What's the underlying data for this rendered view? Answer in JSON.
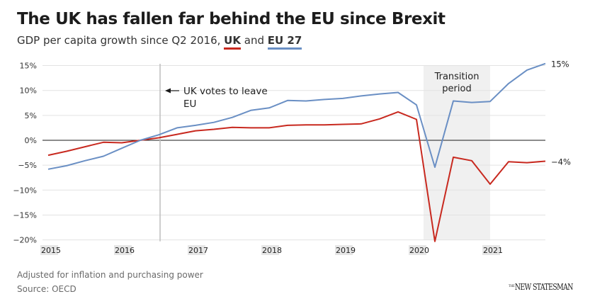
{
  "header": {
    "title": "The UK has fallen far behind the EU since Brexit",
    "subtitle_prefix": "GDP per capita growth since Q2 2016, ",
    "subtitle_uk": "UK",
    "subtitle_and": " and ",
    "subtitle_eu": "EU 27"
  },
  "footer": {
    "note": "Adjusted for inflation and purchasing power",
    "source": "Source: OECD",
    "logo_the": "THE",
    "logo_name": "NEW STATESMAN"
  },
  "colors": {
    "uk": "#c8291f",
    "eu": "#6a8fc4",
    "grid": "#e2e2e2",
    "zero_line": "#1a1a1a",
    "annotation_line": "#bdbdbd",
    "transition_band": "#f0f0f0"
  },
  "chart_data": {
    "type": "line",
    "title": "The UK has fallen far behind the EU since Brexit",
    "subtitle": "GDP per capita growth since Q2 2016, UK and EU 27",
    "xlabel": "",
    "ylabel": "",
    "ylim": [
      -20,
      15
    ],
    "yticks": [
      15,
      10,
      5,
      0,
      -5,
      -10,
      -15,
      -20
    ],
    "ytick_labels": [
      "15%",
      "10%",
      "5%",
      "0%",
      "−5%",
      "−10%",
      "−15%",
      "−20%"
    ],
    "x": [
      "2015 Q1",
      "2015 Q2",
      "2015 Q3",
      "2015 Q4",
      "2016 Q1",
      "2016 Q2",
      "2016 Q3",
      "2016 Q4",
      "2017 Q1",
      "2017 Q2",
      "2017 Q3",
      "2017 Q4",
      "2018 Q1",
      "2018 Q2",
      "2018 Q3",
      "2018 Q4",
      "2019 Q1",
      "2019 Q2",
      "2019 Q3",
      "2019 Q4",
      "2020 Q1",
      "2020 Q2",
      "2020 Q3",
      "2020 Q4",
      "2021 Q1",
      "2021 Q2",
      "2021 Q3",
      "2021 Q4"
    ],
    "xtick_labels": [
      "2015",
      "2016",
      "2017",
      "2018",
      "2019",
      "2020",
      "2021"
    ],
    "xtick_quarter_index": [
      0,
      4,
      8,
      12,
      16,
      20,
      24
    ],
    "grid": true,
    "series": [
      {
        "name": "UK",
        "color": "#c8291f",
        "values": [
          -3.0,
          -2.2,
          -1.3,
          -0.4,
          -0.5,
          0.0,
          0.5,
          1.2,
          1.9,
          2.2,
          2.6,
          2.5,
          2.5,
          3.0,
          3.1,
          3.1,
          3.2,
          3.3,
          4.3,
          5.7,
          4.2,
          -20.3,
          -3.4,
          -4.1,
          -8.8,
          -4.3,
          -4.5,
          -4.2
        ],
        "end_label": "−4%"
      },
      {
        "name": "EU 27",
        "color": "#6a8fc4",
        "values": [
          -5.8,
          -5.1,
          -4.1,
          -3.2,
          -1.6,
          0.0,
          1.1,
          2.5,
          3.0,
          3.6,
          4.6,
          6.0,
          6.5,
          8.0,
          7.9,
          8.2,
          8.4,
          8.9,
          9.3,
          9.6,
          7.1,
          -5.4,
          7.9,
          7.6,
          7.8,
          11.4,
          14.1,
          15.4
        ],
        "end_label": "15%"
      }
    ],
    "annotations": [
      {
        "type": "vline",
        "at_quarter_index": 6,
        "text_line1": "UK votes to leave",
        "text_line2": "EU",
        "arrow": "left"
      },
      {
        "type": "band",
        "from_quarter_index": 20.5,
        "to_quarter_index": 24,
        "text_line1": "Transition",
        "text_line2": "period"
      }
    ]
  }
}
